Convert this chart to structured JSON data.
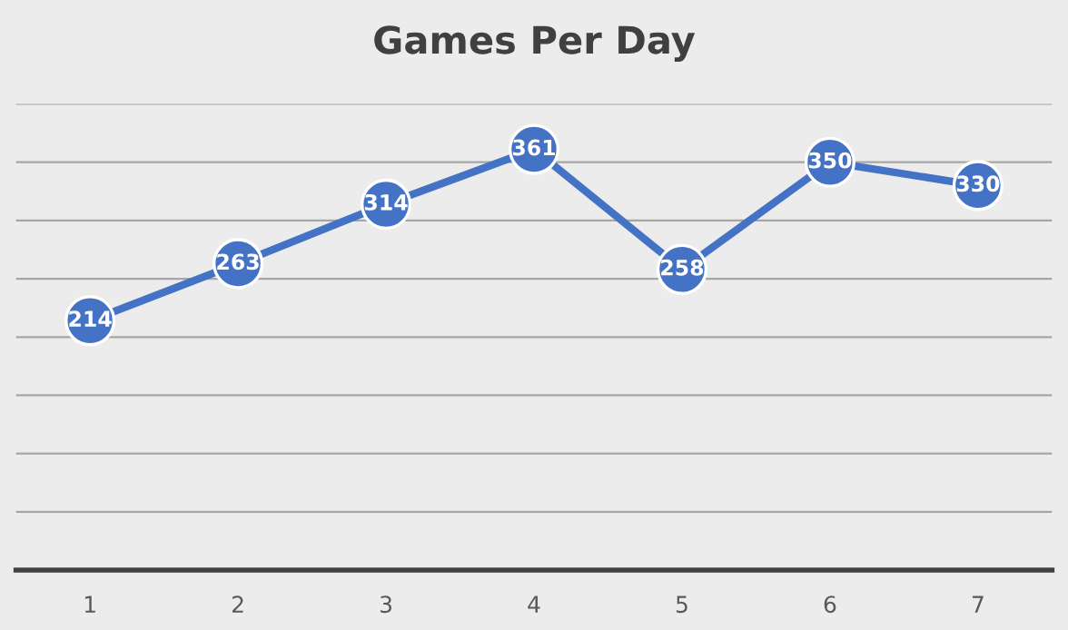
{
  "chart_data": {
    "type": "line",
    "title": "Games Per Day",
    "categories": [
      "1",
      "2",
      "3",
      "4",
      "5",
      "6",
      "7"
    ],
    "series": [
      {
        "color": "#4472c4",
        "values": [
          214,
          263,
          314,
          361,
          258,
          350,
          330
        ]
      }
    ],
    "ylim": [
      0,
      400
    ],
    "yticks": [
      {
        "value": 0,
        "label": null
      },
      {
        "value": 50,
        "label": null
      },
      {
        "value": 100,
        "label": null
      },
      {
        "value": 150,
        "label": null
      },
      {
        "value": 200,
        "label": null
      },
      {
        "value": 250,
        "label": null
      },
      {
        "value": 300,
        "label": null
      },
      {
        "value": 350,
        "label": null
      },
      {
        "value": 400,
        "label": null
      }
    ],
    "tick_labels": "x",
    "grid": "y",
    "data_labels": true,
    "marker": "circle",
    "line_style": "solid",
    "legend": false
  }
}
